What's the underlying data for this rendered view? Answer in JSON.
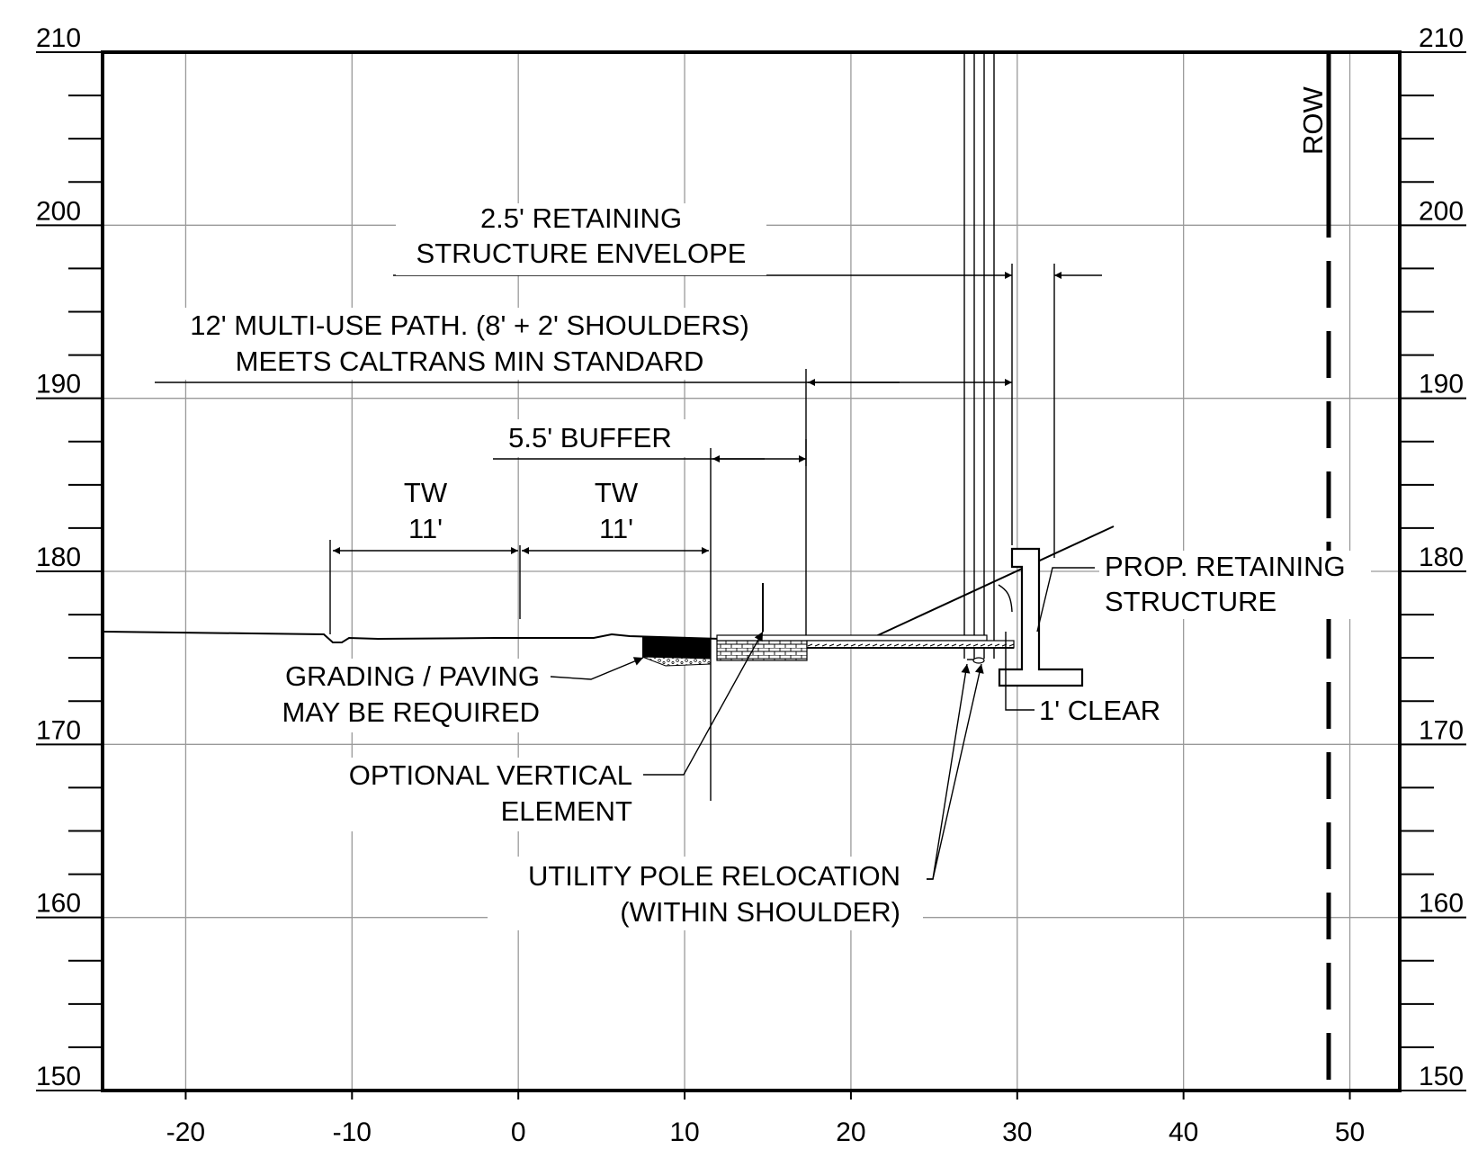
{
  "figure": {
    "x_ticks": [
      "-20",
      "-10",
      "0",
      "10",
      "20",
      "30",
      "40",
      "50"
    ],
    "elevation_ticks": [
      "210",
      "200",
      "190",
      "180",
      "170",
      "160",
      "150"
    ]
  },
  "labels": {
    "row": "ROW",
    "envelope_line1": "2.5' RETAINING",
    "envelope_line2": "STRUCTURE ENVELOPE",
    "path_line1": "12' MULTI-USE PATH. (8' + 2' SHOULDERS)",
    "path_line2": "MEETS CALTRANS MIN STANDARD",
    "buffer": "5.5' BUFFER",
    "tw_left_1": "TW",
    "tw_left_2": "11'",
    "tw_right_1": "TW",
    "tw_right_2": "11'",
    "retaining_line1": "PROP. RETAINING",
    "retaining_line2": "STRUCTURE",
    "grading_line1": "GRADING / PAVING",
    "grading_line2": "MAY BE REQUIRED",
    "clear": "1' CLEAR",
    "vertical_line1": "OPTIONAL VERTICAL",
    "vertical_line2": "ELEMENT",
    "utility_line1": "UTILITY POLE RELOCATION",
    "utility_line2": "(WITHIN SHOULDER)"
  }
}
